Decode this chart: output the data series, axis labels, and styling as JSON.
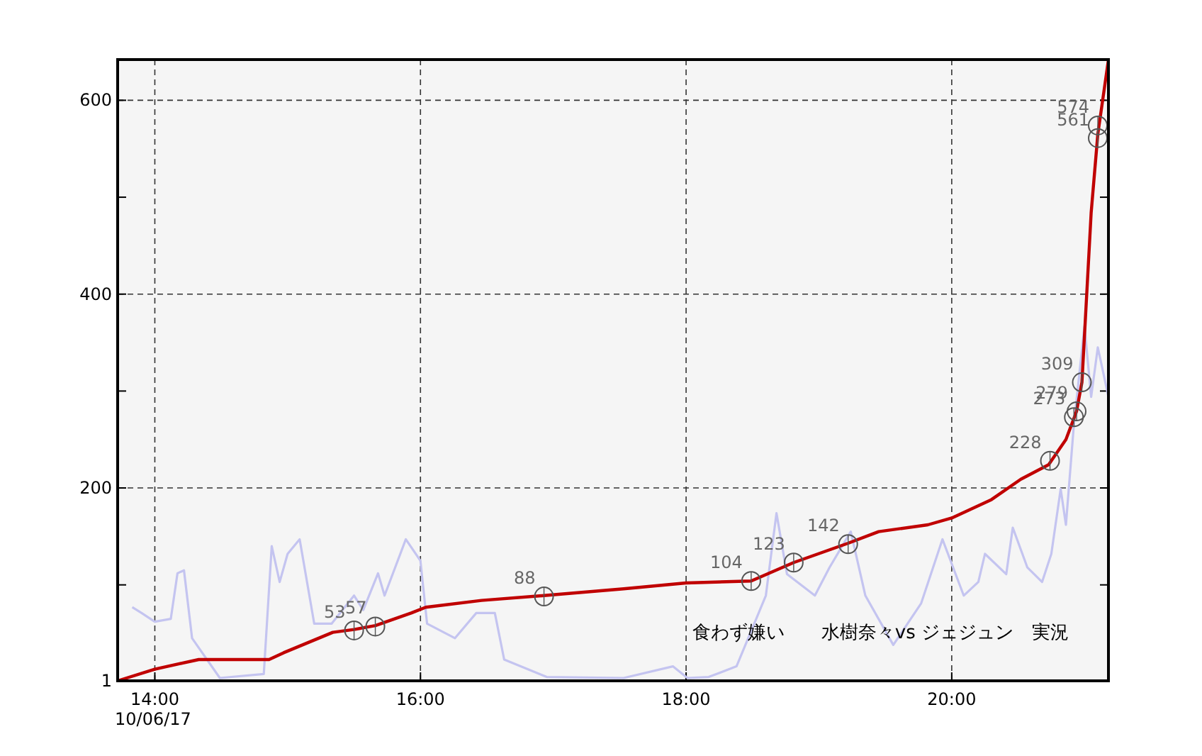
{
  "chart_data": {
    "type": "line",
    "xlim": [
      13.72,
      21.18
    ],
    "ylim": [
      1,
      642
    ],
    "xticks": [
      {
        "value": 14,
        "label": "14:00\n10/06/17"
      },
      {
        "value": 16,
        "label": "16:00"
      },
      {
        "value": 18,
        "label": "18:00"
      },
      {
        "value": 20,
        "label": "20:00"
      }
    ],
    "yticks": [
      1,
      {
        "value": 100,
        "label": null
      },
      200,
      {
        "value": 300,
        "label": null
      },
      400,
      {
        "value": 500,
        "label": null
      },
      600
    ],
    "grid": true,
    "marker": "none",
    "series": [
      {
        "color": "#c4c4f0",
        "x": [
          13.83,
          13.9,
          14.0,
          14.12,
          14.17,
          14.22,
          14.28,
          14.49,
          14.82,
          14.88,
          14.94,
          15.0,
          15.09,
          15.2,
          15.33,
          15.5,
          15.57,
          15.68,
          15.73,
          15.89,
          16.0,
          16.05,
          16.26,
          16.42,
          16.56,
          16.63,
          16.95,
          17.53,
          17.9,
          18.01,
          18.17,
          18.38,
          18.6,
          18.68,
          18.76,
          18.97,
          19.08,
          19.24,
          19.35,
          19.56,
          19.77,
          19.93,
          20.09,
          20.2,
          20.25,
          20.41,
          20.46,
          20.57,
          20.68,
          20.75,
          20.82,
          20.86,
          20.92,
          21.0,
          21.05,
          21.1,
          21.18
        ],
        "values": [
          77,
          71,
          62,
          65,
          112,
          115,
          45,
          4,
          8,
          140,
          103,
          132,
          147,
          60,
          60,
          89,
          74,
          112,
          89,
          147,
          125,
          60,
          45,
          71,
          71,
          23,
          5,
          4,
          16,
          4,
          5,
          16,
          89,
          174,
          111,
          89,
          118,
          155,
          89,
          38,
          81,
          147,
          89,
          103,
          132,
          111,
          159,
          118,
          103,
          132,
          199,
          162,
          265,
          367,
          294,
          345,
          294
        ]
      },
      {
        "color": "#c00000",
        "x": [
          13.72,
          14.0,
          14.33,
          14.86,
          14.97,
          15.34,
          15.5,
          15.66,
          15.93,
          16.04,
          16.46,
          16.93,
          17.53,
          18.0,
          18.49,
          18.81,
          19.22,
          19.45,
          19.82,
          20.0,
          20.3,
          20.52,
          20.73,
          20.86,
          20.94,
          20.98,
          21.05,
          21.1,
          21.18
        ],
        "values": [
          1,
          13,
          23,
          23,
          30,
          51,
          54,
          58,
          71,
          77,
          84,
          89,
          96,
          102,
          104,
          123,
          143,
          155,
          162,
          169,
          188,
          209,
          224,
          250,
          279,
          309,
          484,
          565,
          642
        ]
      }
    ],
    "annotations": [
      {
        "text": "53",
        "x": 15.5,
        "y": 53
      },
      {
        "text": "57",
        "x": 15.66,
        "y": 57
      },
      {
        "text": "88",
        "x": 16.93,
        "y": 88
      },
      {
        "text": "104",
        "x": 18.49,
        "y": 104
      },
      {
        "text": "123",
        "x": 18.81,
        "y": 123
      },
      {
        "text": "142",
        "x": 19.22,
        "y": 142
      },
      {
        "text": "228",
        "x": 20.74,
        "y": 228
      },
      {
        "text": "273",
        "x": 20.92,
        "y": 273
      },
      {
        "text": "279",
        "x": 20.94,
        "y": 279
      },
      {
        "text": "309",
        "x": 20.98,
        "y": 309
      },
      {
        "text": "561",
        "x": 21.1,
        "y": 561
      },
      {
        "text": "574",
        "x": 21.1,
        "y": 574
      },
      "食わず嫌い　　水樹奈々vs ジェジュン　実況"
    ]
  }
}
